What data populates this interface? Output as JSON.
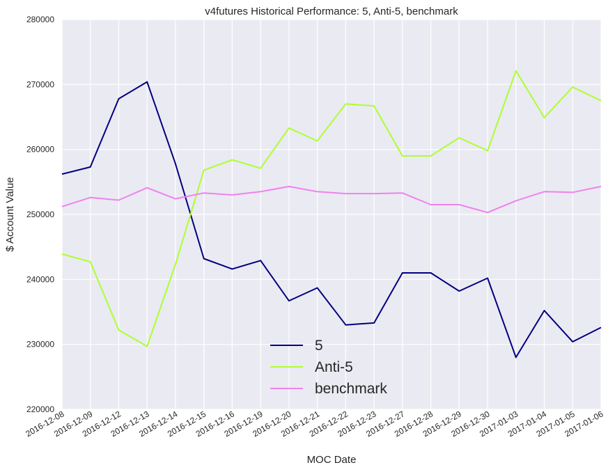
{
  "chart_data": {
    "type": "line",
    "title": "v4futures Historical Performance: 5, Anti-5, benchmark",
    "xlabel": "MOC Date",
    "ylabel": "$ Account Value",
    "x": [
      "2016-12-08",
      "2016-12-09",
      "2016-12-12",
      "2016-12-13",
      "2016-12-14",
      "2016-12-15",
      "2016-12-16",
      "2016-12-19",
      "2016-12-20",
      "2016-12-21",
      "2016-12-22",
      "2016-12-23",
      "2016-12-27",
      "2016-12-28",
      "2016-12-29",
      "2016-12-30",
      "2017-01-03",
      "2017-01-04",
      "2017-01-05",
      "2017-01-06"
    ],
    "ylim": [
      220000,
      280000
    ],
    "yticks": [
      "220000",
      "230000",
      "240000",
      "250000",
      "260000",
      "270000",
      "280000"
    ],
    "grid": true,
    "legend_position": "lower-center",
    "series": [
      {
        "name": "5",
        "color": "#000080",
        "values": [
          256200,
          257300,
          267800,
          270400,
          257800,
          243200,
          241600,
          242900,
          236700,
          238700,
          233000,
          233300,
          241000,
          241000,
          238200,
          240200,
          228000,
          235200,
          230400,
          232600
        ]
      },
      {
        "name": "Anti-5",
        "color": "#adff2f",
        "values": [
          243900,
          242700,
          232200,
          229700,
          242300,
          256800,
          258400,
          257100,
          263300,
          261300,
          267000,
          266700,
          259000,
          259000,
          261800,
          259800,
          272100,
          264900,
          269600,
          267500
        ]
      },
      {
        "name": "benchmark",
        "color": "#ee82ee",
        "values": [
          251200,
          252600,
          252200,
          254100,
          252400,
          253300,
          253000,
          253500,
          254300,
          253500,
          253200,
          253200,
          253300,
          251500,
          251500,
          250300,
          252100,
          253500,
          253400,
          254300
        ]
      }
    ]
  }
}
